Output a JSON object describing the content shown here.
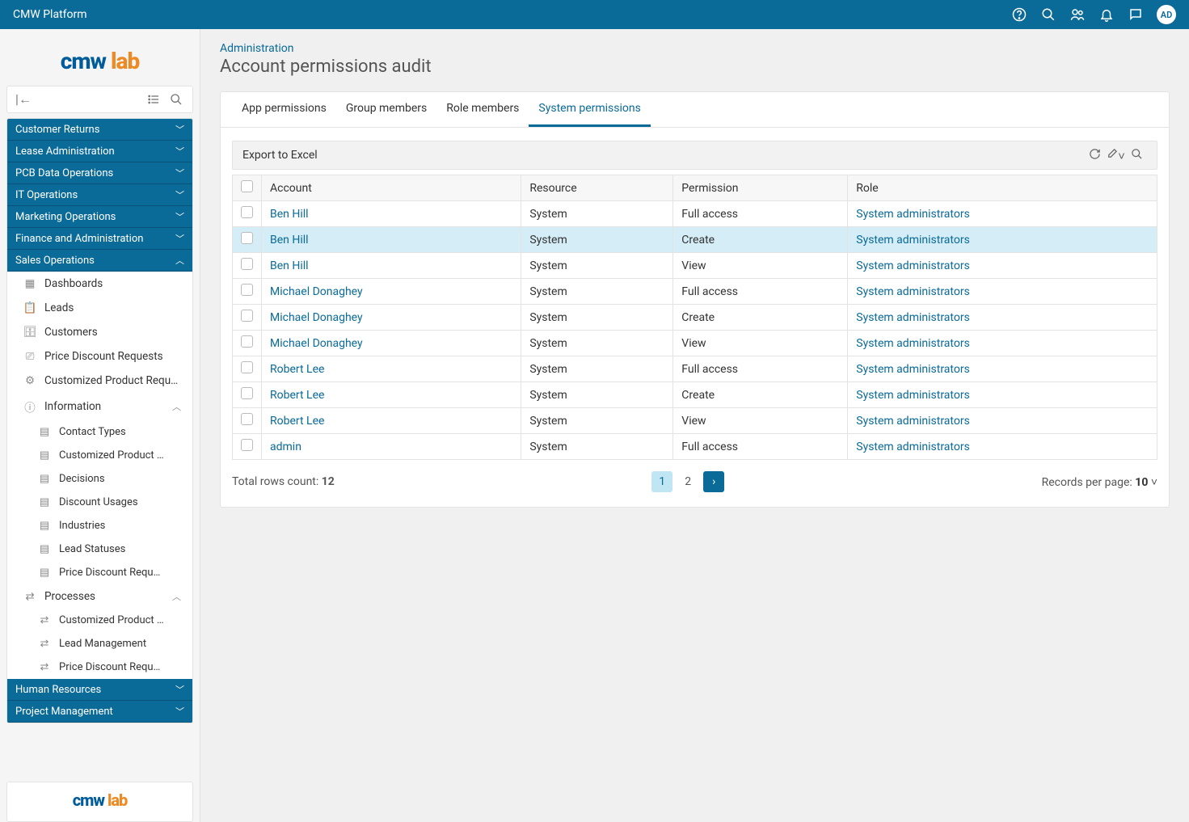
{
  "topbar": {
    "title": "CMW Platform",
    "avatar": "AD"
  },
  "logo": {
    "part1": "cmw",
    "part2": "lab"
  },
  "sidebar": {
    "modules_collapsed": [
      "Customer Returns",
      "Lease Administration",
      "PCB Data Operations",
      "IT Operations",
      "Marketing Operations",
      "Finance and Administration"
    ],
    "module_expanded": "Sales Operations",
    "nav": {
      "dashboards": "Dashboards",
      "leads": "Leads",
      "customers": "Customers",
      "price_discount": "Price Discount Requests",
      "custom_prod": "Customized Product Requ…",
      "information": "Information",
      "info_items": [
        "Contact Types",
        "Customized Product …",
        "Decisions",
        "Discount Usages",
        "Industries",
        "Lead Statuses",
        "Price Discount Requ…"
      ],
      "processes": "Processes",
      "process_items": [
        "Customized Product …",
        "Lead Management",
        "Price Discount Requ…"
      ]
    },
    "modules_bottom": [
      "Human Resources",
      "Project Management"
    ]
  },
  "breadcrumb": {
    "admin": "Administration",
    "title": "Account permissions audit"
  },
  "tabs": [
    "App permissions",
    "Group members",
    "Role members",
    "System permissions"
  ],
  "active_tab": 3,
  "grid": {
    "export": "Export to Excel",
    "columns": [
      "Account",
      "Resource",
      "Permission",
      "Role"
    ],
    "rows": [
      {
        "account": "Ben Hill",
        "resource": "System",
        "permission": "Full access",
        "role": "System administrators",
        "selected": false
      },
      {
        "account": "Ben Hill",
        "resource": "System",
        "permission": "Create",
        "role": "System administrators",
        "selected": true
      },
      {
        "account": "Ben Hill",
        "resource": "System",
        "permission": "View",
        "role": "System administrators",
        "selected": false
      },
      {
        "account": "Michael Donaghey",
        "resource": "System",
        "permission": "Full access",
        "role": "System administrators",
        "selected": false
      },
      {
        "account": "Michael Donaghey",
        "resource": "System",
        "permission": "Create",
        "role": "System administrators",
        "selected": false
      },
      {
        "account": "Michael Donaghey",
        "resource": "System",
        "permission": "View",
        "role": "System administrators",
        "selected": false
      },
      {
        "account": "Robert Lee",
        "resource": "System",
        "permission": "Full access",
        "role": "System administrators",
        "selected": false
      },
      {
        "account": "Robert Lee",
        "resource": "System",
        "permission": "Create",
        "role": "System administrators",
        "selected": false
      },
      {
        "account": "Robert Lee",
        "resource": "System",
        "permission": "View",
        "role": "System administrators",
        "selected": false
      },
      {
        "account": "admin",
        "resource": "System",
        "permission": "Full access",
        "role": "System administrators",
        "selected": false
      }
    ],
    "total_label": "Total rows count: ",
    "total": "12",
    "pages": [
      "1",
      "2"
    ],
    "rpp_label": "Records per page: ",
    "rpp": "10"
  }
}
